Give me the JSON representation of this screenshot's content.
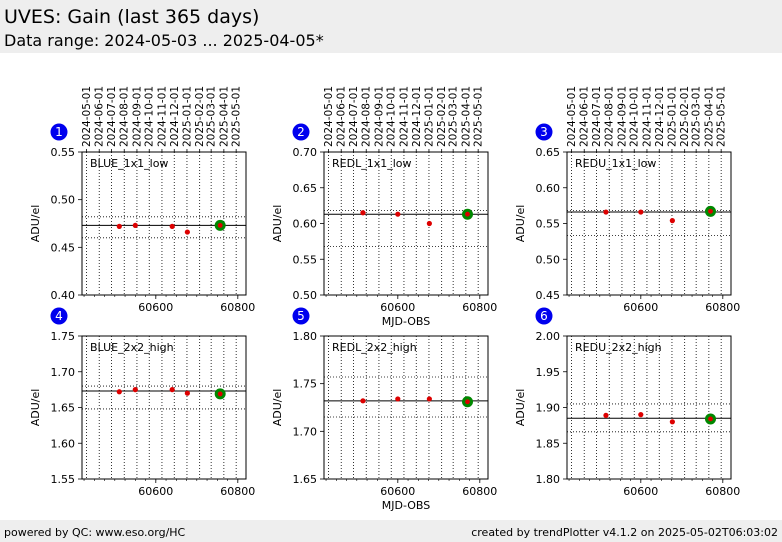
{
  "header": {
    "title": "UVES: Gain (last 365 days)",
    "subtitle": "Data range: 2024-05-03 ... 2025-04-05*"
  },
  "footer": {
    "left": "powered by QC: www.eso.org/HC",
    "right": "created by trendPlotter v4.1.2 on 2025-05-02T06:03:02"
  },
  "colors": {
    "point": "#dd0000",
    "last_point": "#008800",
    "badge": "#0000ee",
    "header_bg": "#eeeeee"
  },
  "date_ticks": [
    "2024-05-01",
    "2024-06-01",
    "2024-07-01",
    "2024-08-01",
    "2024-09-01",
    "2024-10-01",
    "2024-11-01",
    "2024-12-01",
    "2025-01-01",
    "2025-02-01",
    "2025-03-01",
    "2025-04-01",
    "2025-05-01"
  ],
  "date_tick_mjd": [
    60431,
    60462,
    60492,
    60523,
    60554,
    60584,
    60615,
    60645,
    60676,
    60707,
    60735,
    60766,
    60796
  ],
  "chart_data": [
    {
      "type": "scatter",
      "badge": "1",
      "label": "BLUE_1x1_low",
      "xlim": [
        60420,
        60820
      ],
      "ylim": [
        0.4,
        0.55
      ],
      "yticks": [
        "0.40",
        "0.45",
        "0.50",
        "0.55"
      ],
      "xticks": [
        60600,
        60800
      ],
      "xlabel": "",
      "ylabel": "ADU/el",
      "show_dates": true,
      "mean": 0.473,
      "band": [
        0.46,
        0.482
      ],
      "x": [
        60511,
        60550,
        60640,
        60677,
        60757
      ],
      "y": [
        0.472,
        0.473,
        0.472,
        0.466,
        0.473
      ],
      "last": {
        "x": 60757,
        "y": 0.473
      }
    },
    {
      "type": "scatter",
      "badge": "2",
      "label": "REDL_1x1_low",
      "xlim": [
        60420,
        60820
      ],
      "ylim": [
        0.5,
        0.7
      ],
      "yticks": [
        "0.50",
        "0.55",
        "0.60",
        "0.65",
        "0.70"
      ],
      "xticks": [
        60600,
        60800
      ],
      "xlabel": "MJD-OBS",
      "ylabel": "ADU/el",
      "show_dates": true,
      "mean": 0.613,
      "band": [
        0.568,
        0.618
      ],
      "x": [
        60515,
        60600,
        60677,
        60770
      ],
      "y": [
        0.615,
        0.613,
        0.6,
        0.613
      ],
      "last": {
        "x": 60770,
        "y": 0.613
      }
    },
    {
      "type": "scatter",
      "badge": "3",
      "label": "REDU_1x1_low",
      "xlim": [
        60420,
        60820
      ],
      "ylim": [
        0.45,
        0.65
      ],
      "yticks": [
        "0.45",
        "0.50",
        "0.55",
        "0.60",
        "0.65"
      ],
      "xticks": [
        60600,
        60800
      ],
      "xlabel": "",
      "ylabel": "ADU/el",
      "show_dates": true,
      "mean": 0.566,
      "band": [
        0.533,
        0.568
      ],
      "x": [
        60515,
        60600,
        60677,
        60765,
        60770
      ],
      "y": [
        0.566,
        0.566,
        0.554,
        0.566,
        0.567
      ],
      "last": {
        "x": 60770,
        "y": 0.567
      }
    },
    {
      "type": "scatter",
      "badge": "4",
      "label": "BLUE_2x2_high",
      "xlim": [
        60420,
        60820
      ],
      "ylim": [
        1.55,
        1.75
      ],
      "yticks": [
        "1.55",
        "1.60",
        "1.65",
        "1.70",
        "1.75"
      ],
      "xticks": [
        60600,
        60800
      ],
      "xlabel": "",
      "ylabel": "ADU/el",
      "show_dates": false,
      "mean": 1.673,
      "band": [
        1.648,
        1.68
      ],
      "x": [
        60511,
        60550,
        60640,
        60677,
        60757
      ],
      "y": [
        1.672,
        1.675,
        1.675,
        1.67,
        1.669
      ],
      "last": {
        "x": 60757,
        "y": 1.669
      }
    },
    {
      "type": "scatter",
      "badge": "5",
      "label": "REDL_2x2_high",
      "xlim": [
        60420,
        60820
      ],
      "ylim": [
        1.65,
        1.8
      ],
      "yticks": [
        "1.65",
        "1.70",
        "1.75",
        "1.80"
      ],
      "xticks": [
        60600,
        60800
      ],
      "xlabel": "MJD-OBS",
      "ylabel": "ADU/el",
      "show_dates": false,
      "mean": 1.732,
      "band": [
        1.715,
        1.757
      ],
      "x": [
        60515,
        60600,
        60677,
        60770
      ],
      "y": [
        1.732,
        1.734,
        1.734,
        1.731
      ],
      "last": {
        "x": 60770,
        "y": 1.731
      }
    },
    {
      "type": "scatter",
      "badge": "6",
      "label": "REDU_2x2_high",
      "xlim": [
        60420,
        60820
      ],
      "ylim": [
        1.8,
        2.0
      ],
      "yticks": [
        "1.80",
        "1.85",
        "1.90",
        "1.95",
        "2.00"
      ],
      "xticks": [
        60600,
        60800
      ],
      "xlabel": "",
      "ylabel": "ADU/el",
      "show_dates": false,
      "mean": 1.885,
      "band": [
        1.866,
        1.905
      ],
      "x": [
        60515,
        60600,
        60677,
        60765,
        60770
      ],
      "y": [
        1.889,
        1.89,
        1.88,
        1.885,
        1.884
      ],
      "last": {
        "x": 60770,
        "y": 1.884
      }
    }
  ]
}
